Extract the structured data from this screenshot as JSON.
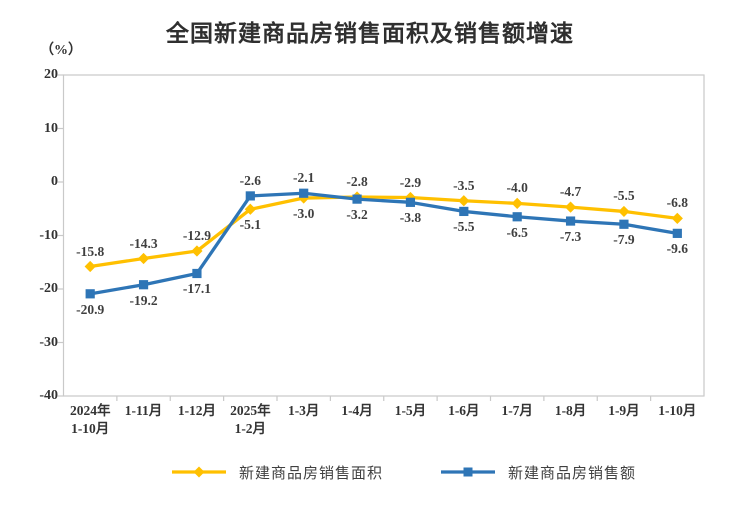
{
  "title": "全国新建商品房销售面积及销售额增速",
  "y_axis_unit": "（%）",
  "colors": {
    "sales_area_line": "#FFC000",
    "sales_amount_line": "#2E75B6",
    "axis_line": "#c9c9c9",
    "tick_text": "#333333",
    "data_label_text": "#3f3f3f",
    "background": "#ffffff"
  },
  "chart_data": {
    "type": "line",
    "title": "全国新建商品房销售面积及销售额增速",
    "ylabel": "（%）",
    "xlabel": "",
    "ylim": [
      -40,
      20
    ],
    "yticks": [
      20,
      10,
      0,
      -10,
      -20,
      -30,
      -40
    ],
    "grid": false,
    "legend_position": "bottom",
    "categories": [
      "2024年\n1-10月",
      "1-11月",
      "1-12月",
      "2025年\n1-2月",
      "1-3月",
      "1-4月",
      "1-5月",
      "1-6月",
      "1-7月",
      "1-8月",
      "1-9月",
      "1-10月"
    ],
    "series": [
      {
        "name": "新建商品房销售面积",
        "color": "#FFC000",
        "marker": "diamond",
        "values": [
          -15.8,
          -14.3,
          -12.9,
          -5.1,
          -3.0,
          -2.8,
          -2.9,
          -3.5,
          -4.0,
          -4.7,
          -5.5,
          -6.8
        ]
      },
      {
        "name": "新建商品房销售额",
        "color": "#2E75B6",
        "marker": "square",
        "values": [
          -20.9,
          -19.2,
          -17.1,
          -2.6,
          -2.1,
          -3.2,
          -3.8,
          -5.5,
          -6.5,
          -7.3,
          -7.9,
          -9.6
        ]
      }
    ]
  }
}
